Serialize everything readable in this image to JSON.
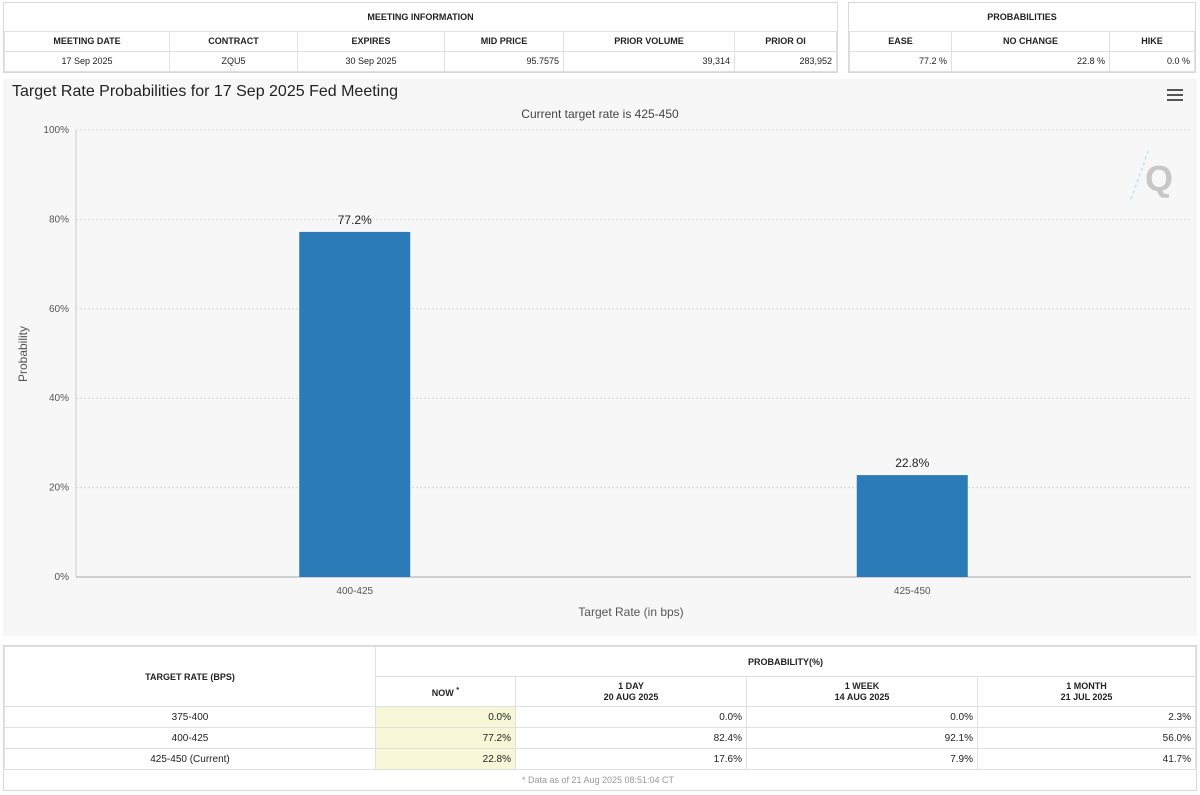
{
  "meeting_info": {
    "title": "MEETING INFORMATION",
    "headers": [
      "MEETING DATE",
      "CONTRACT",
      "EXPIRES",
      "MID PRICE",
      "PRIOR VOLUME",
      "PRIOR OI"
    ],
    "values": [
      "17 Sep 2025",
      "ZQU5",
      "30 Sep 2025",
      "95.7575",
      "39,314",
      "283,952"
    ]
  },
  "probabilities": {
    "title": "PROBABILITIES",
    "headers": [
      "EASE",
      "NO CHANGE",
      "HIKE"
    ],
    "values": [
      "77.2 %",
      "22.8 %",
      "0.0 %"
    ]
  },
  "chart_data": {
    "type": "bar",
    "title": "Target Rate Probabilities for 17 Sep 2025 Fed Meeting",
    "subtitle": "Current target rate is 425-450",
    "xlabel": "Target Rate (in bps)",
    "ylabel": "Probability",
    "categories": [
      "400-425",
      "425-450"
    ],
    "values": [
      77.2,
      22.8
    ],
    "data_labels": [
      "77.2%",
      "22.8%"
    ],
    "ylim": [
      0,
      100
    ],
    "yticks": [
      0,
      20,
      40,
      60,
      80,
      100
    ],
    "ytick_labels": [
      "0%",
      "20%",
      "40%",
      "60%",
      "80%",
      "100%"
    ],
    "bar_color": "#2b7bb9",
    "grid": true
  },
  "table": {
    "target_header": "TARGET RATE (BPS)",
    "prob_header": "PROBABILITY(%)",
    "cols": [
      {
        "label": "NOW",
        "mark": "*",
        "date": ""
      },
      {
        "label": "1 DAY",
        "date": "20 AUG 2025"
      },
      {
        "label": "1 WEEK",
        "date": "14 AUG 2025"
      },
      {
        "label": "1 MONTH",
        "date": "21 JUL 2025"
      }
    ],
    "rows": [
      {
        "rate": "375-400",
        "vals": [
          "0.0%",
          "0.0%",
          "0.0%",
          "2.3%"
        ]
      },
      {
        "rate": "400-425",
        "vals": [
          "77.2%",
          "82.4%",
          "92.1%",
          "56.0%"
        ]
      },
      {
        "rate": "425-450 (Current)",
        "vals": [
          "22.8%",
          "17.6%",
          "7.9%",
          "41.7%"
        ]
      }
    ],
    "footnote": "* Data as of 21 Aug 2025 08:51:04 CT"
  }
}
